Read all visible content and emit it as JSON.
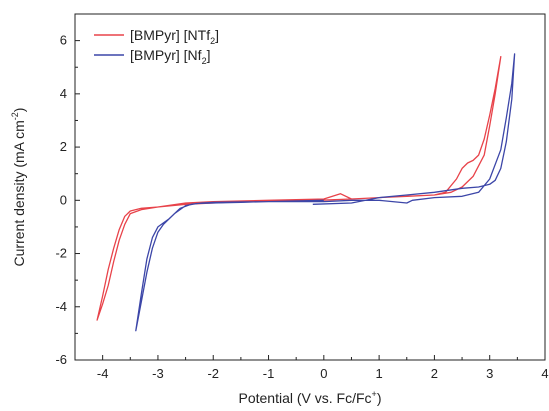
{
  "chart_data": {
    "type": "line",
    "title": "",
    "xlabel": "Potential (V vs. Fc/Fc",
    "xlabel_sup": "+",
    "xlabel_end": ")",
    "ylabel": "Current density (mA cm",
    "ylabel_sup": "-2",
    "ylabel_end": ")",
    "xlim": [
      -4.5,
      4
    ],
    "ylim": [
      -6,
      7
    ],
    "xticks": [
      -4,
      -3,
      -2,
      -1,
      0,
      1,
      2,
      3,
      4
    ],
    "yticks": [
      -6,
      -4,
      -2,
      0,
      2,
      4,
      6
    ],
    "grid": false,
    "legend_position": "top-left",
    "series": [
      {
        "name": "[BMPyr] [NTf",
        "name_sub": "2",
        "name_end": "]",
        "color": "#e8434a",
        "x": [
          -0.1,
          0.5,
          1.0,
          1.5,
          2.0,
          2.3,
          2.5,
          2.7,
          2.9,
          3.0,
          3.1,
          3.15,
          3.2,
          3.1,
          3.0,
          2.9,
          2.8,
          2.7,
          2.6,
          2.5,
          2.4,
          2.2,
          2.0,
          1.5,
          1.0,
          0.5,
          0.3,
          0.0,
          -0.5,
          -1.0,
          -1.5,
          -2.0,
          -2.5,
          -3.0,
          -3.3,
          -3.5,
          -3.6,
          -3.7,
          -3.8,
          -3.9,
          -4.0,
          -4.1,
          -4.0,
          -3.9,
          -3.8,
          -3.7,
          -3.6,
          -3.5,
          -3.3,
          -3.0,
          -2.5,
          -2.0,
          -1.0,
          0.0
        ],
        "y": [
          0.0,
          0.05,
          0.1,
          0.15,
          0.2,
          0.3,
          0.5,
          0.9,
          1.7,
          2.8,
          4.0,
          4.7,
          5.4,
          4.2,
          3.2,
          2.3,
          1.7,
          1.5,
          1.4,
          1.2,
          0.8,
          0.3,
          0.2,
          0.15,
          0.1,
          0.05,
          0.25,
          0.05,
          0.0,
          -0.02,
          -0.05,
          -0.1,
          -0.15,
          -0.25,
          -0.35,
          -0.5,
          -0.9,
          -1.5,
          -2.3,
          -3.2,
          -3.9,
          -4.5,
          -3.6,
          -2.6,
          -1.8,
          -1.1,
          -0.6,
          -0.4,
          -0.3,
          -0.25,
          -0.1,
          -0.05,
          0.0,
          0.05
        ]
      },
      {
        "name": "[BMPyr] [Nf",
        "name_sub": "2",
        "name_end": "]",
        "color": "#3c46a8",
        "x": [
          -0.2,
          0.5,
          1.0,
          1.5,
          2.0,
          2.5,
          2.8,
          3.0,
          3.1,
          3.2,
          3.3,
          3.4,
          3.45,
          3.4,
          3.3,
          3.2,
          3.0,
          2.8,
          2.5,
          2.0,
          1.6,
          1.5,
          1.0,
          0.5,
          0.0,
          -0.5,
          -1.0,
          -1.5,
          -2.0,
          -2.3,
          -2.5,
          -2.7,
          -2.9,
          -3.0,
          -3.1,
          -3.2,
          -3.3,
          -3.4,
          -3.3,
          -3.2,
          -3.1,
          -3.0,
          -2.8,
          -2.6,
          -2.4,
          -2.2,
          -2.0,
          -1.0,
          0.0
        ],
        "y": [
          -0.15,
          -0.1,
          0.1,
          0.2,
          0.3,
          0.45,
          0.5,
          0.6,
          0.75,
          1.2,
          2.2,
          3.8,
          5.5,
          4.4,
          3.1,
          1.9,
          0.8,
          0.3,
          0.15,
          0.1,
          0.0,
          -0.1,
          0.0,
          0.0,
          -0.05,
          -0.05,
          -0.05,
          -0.08,
          -0.1,
          -0.12,
          -0.2,
          -0.5,
          -0.9,
          -1.2,
          -1.8,
          -2.7,
          -3.8,
          -4.9,
          -3.5,
          -2.2,
          -1.4,
          -1.0,
          -0.7,
          -0.3,
          -0.15,
          -0.1,
          -0.08,
          -0.05,
          0.0
        ]
      }
    ]
  }
}
